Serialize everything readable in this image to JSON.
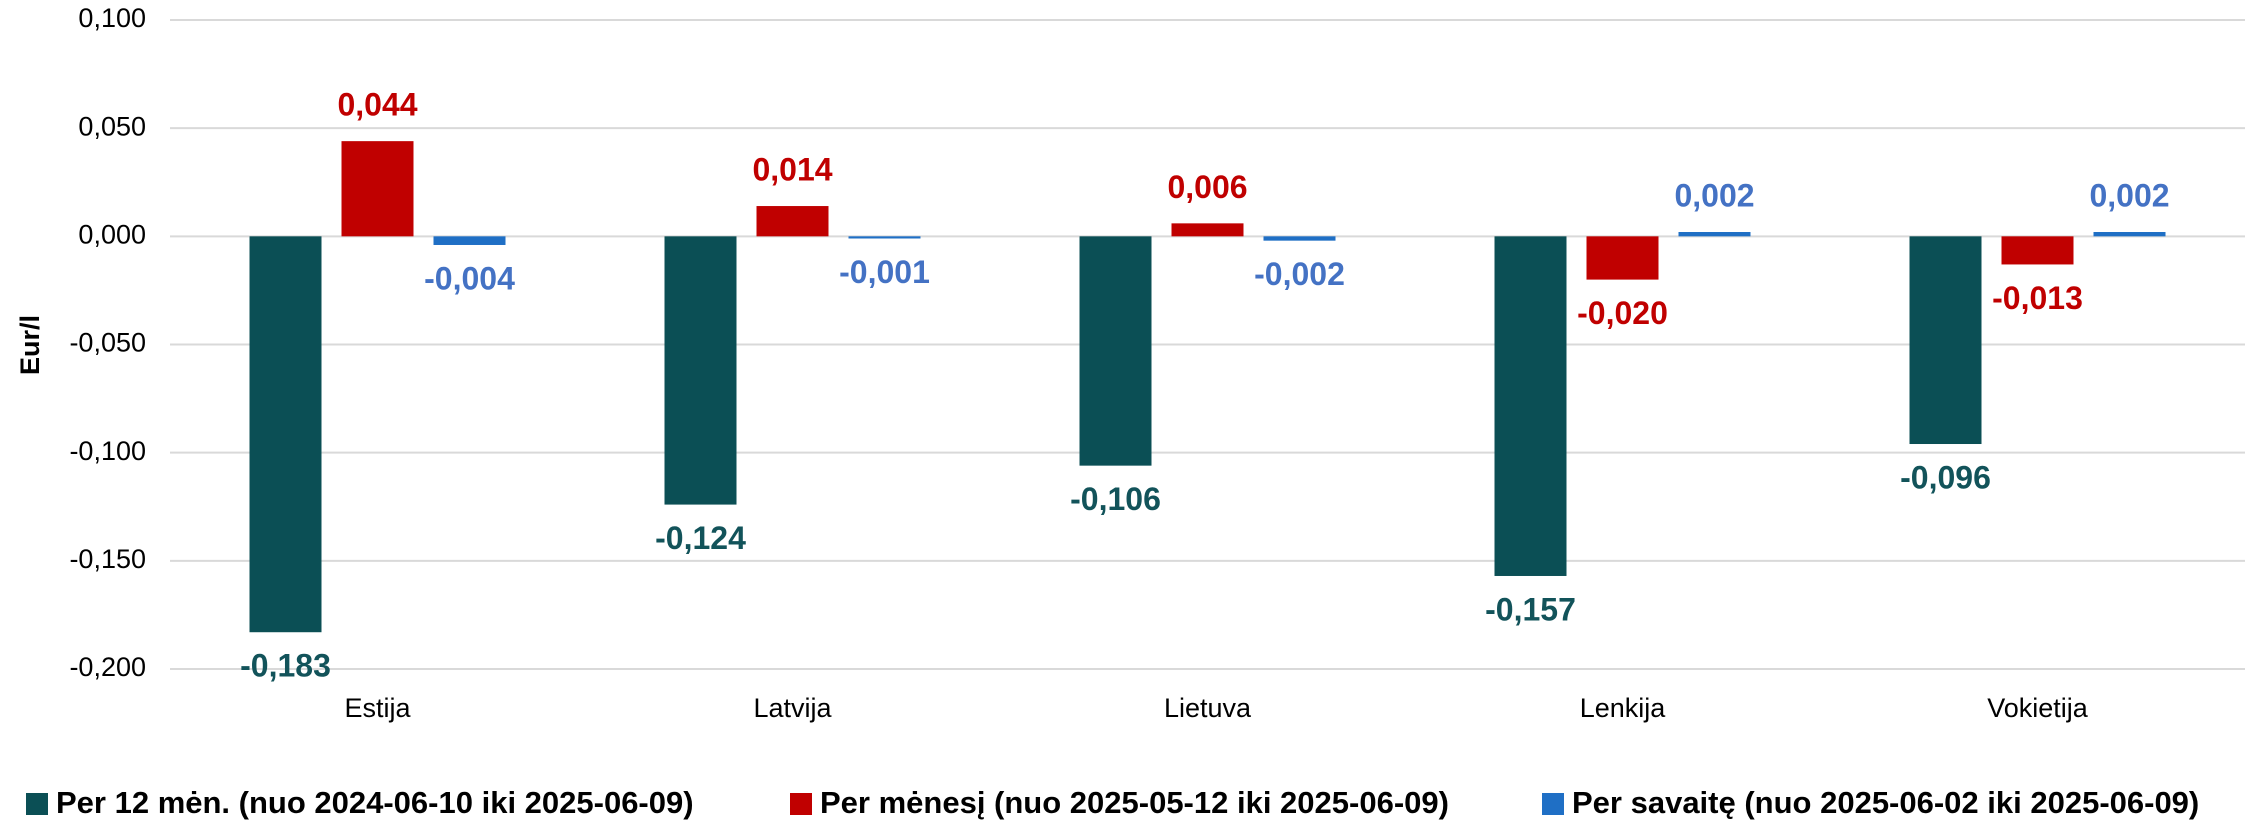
{
  "chart_data": {
    "type": "bar",
    "y_label": "Eur/l",
    "categories": [
      "Estija",
      "Latvija",
      "Lietuva",
      "Lenkija",
      "Vokietija"
    ],
    "series": [
      {
        "name": "Per 12 mėn. (nuo 2024-06-10 iki 2025-06-09)",
        "color": "#0b4f55",
        "label_color": "#12535a",
        "values": [
          -0.183,
          -0.124,
          -0.106,
          -0.157,
          -0.096
        ],
        "value_labels": [
          "-0,183",
          "-0,124",
          "-0,106",
          "-0,157",
          "-0,096"
        ]
      },
      {
        "name": "Per mėnesį (nuo 2025-05-12 iki 2025-06-09)",
        "color": "#c00000",
        "label_color": "#c00000",
        "values": [
          0.044,
          0.014,
          0.006,
          -0.02,
          -0.013
        ],
        "value_labels": [
          "0,044",
          "0,014",
          "0,006",
          "-0,020",
          "-0,013"
        ]
      },
      {
        "name": "Per savaitę (nuo 2025-06-02 iki 2025-06-09)",
        "color": "#1f6fc5",
        "label_color": "#4472c4",
        "values": [
          -0.004,
          -0.001,
          -0.002,
          0.002,
          0.002
        ],
        "value_labels": [
          "-0,004",
          "-0,001",
          "-0,002",
          "0,002",
          "0,002"
        ]
      }
    ],
    "ylim": [
      -0.2,
      0.1
    ],
    "yticks": [
      {
        "value": -0.2,
        "label": "-0,200"
      },
      {
        "value": -0.15,
        "label": "-0,150"
      },
      {
        "value": -0.1,
        "label": "-0,100"
      },
      {
        "value": -0.05,
        "label": "-0,050"
      },
      {
        "value": 0,
        "label": "0,000"
      },
      {
        "value": 0.05,
        "label": "0,050"
      },
      {
        "value": 0.1,
        "label": "0,100"
      }
    ],
    "grid": true,
    "legend": "bottom"
  }
}
